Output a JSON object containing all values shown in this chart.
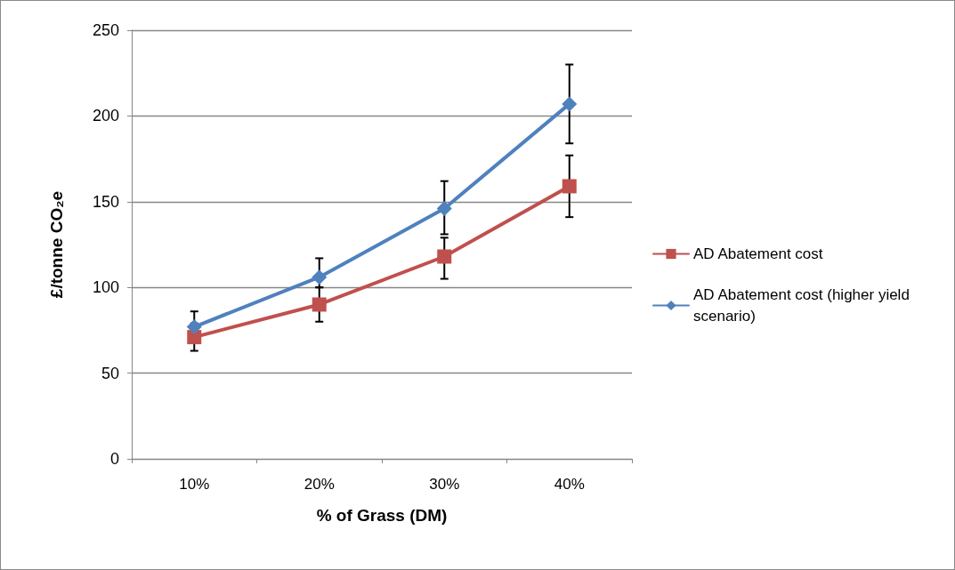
{
  "chart_data": {
    "type": "line",
    "xlabel": "% of Grass (DM)",
    "ylabel": "£/tonne CO₂e",
    "categories": [
      "10%",
      "20%",
      "30%",
      "40%"
    ],
    "series": [
      {
        "name": "AD Abatement cost",
        "color": "#c0504d",
        "marker": "square",
        "values": [
          71,
          90,
          118,
          159
        ],
        "errors": [
          [
            63,
            79
          ],
          [
            80,
            100
          ],
          [
            105,
            129
          ],
          [
            141,
            177
          ]
        ]
      },
      {
        "name": "AD Abatement cost (higher yield scenario)",
        "color": "#4f81bd",
        "marker": "diamond",
        "values": [
          77,
          106,
          146,
          207
        ],
        "errors": [
          [
            68,
            86
          ],
          [
            100,
            117
          ],
          [
            131,
            162
          ],
          [
            184,
            230
          ]
        ]
      }
    ],
    "ylim": [
      0,
      250
    ],
    "yticks": [
      0,
      50,
      100,
      150,
      200,
      250
    ],
    "grid": "y",
    "legend": "right",
    "line_style": "solid"
  }
}
